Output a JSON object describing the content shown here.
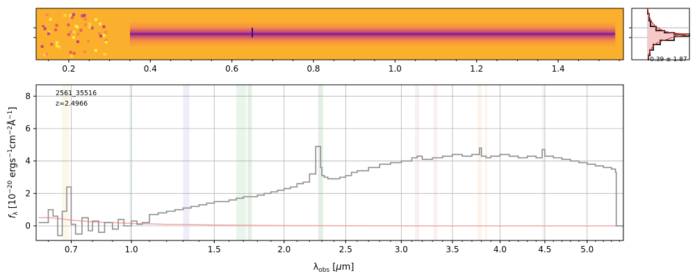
{
  "object_label": {
    "id": "2561_35516",
    "redshift": "z=2.4966"
  },
  "colors": {
    "spectrum": "#8c8c8c",
    "model": "#f4a3a3",
    "grid": "#b0b0b0",
    "hist_line": "#222222",
    "hist_fill": "#f7c8c8",
    "hist_model": "#d33b3b",
    "band_colors": [
      "#8fbf8f",
      "#9fc6e6",
      "#c4b8e8",
      "#a8d8b0",
      "#e6c6c6",
      "#f5d0b0",
      "#e0c0e0",
      "#f0e0b0"
    ]
  },
  "chart_data": [
    {
      "type": "heatmap",
      "name": "2D spectrum",
      "colormap": "plasma",
      "x_axis": {
        "range": [
          0.12,
          1.56
        ],
        "ticks": [
          "0.2",
          "0.4",
          "0.6",
          "0.8",
          "1.0",
          "1.2",
          "1.4"
        ]
      },
      "trace_center_fraction": 0.55,
      "profile": {
        "label": "-0.39 ± 1.87"
      }
    },
    {
      "type": "line",
      "name": "1D spectrum",
      "xlabel": "λ_obs [μm]",
      "ylabel": "f_λ [10^-20 ergs^-1cm^-2Å^-1]",
      "x_scale": "sqrt",
      "xlim": [
        0.55,
        5.45
      ],
      "ylim": [
        -0.9,
        8.7
      ],
      "xticks": [
        "0.7",
        "1.0",
        "1.5",
        "2.0",
        "2.5",
        "3.0",
        "3.5",
        "4.0",
        "4.5",
        "5.0"
      ],
      "xtick_values": [
        0.7,
        1.0,
        1.5,
        2.0,
        2.5,
        3.0,
        3.5,
        4.0,
        4.5,
        5.0
      ],
      "yticks": [
        "0",
        "2",
        "4",
        "6",
        "8"
      ],
      "ytick_values": [
        0,
        2,
        4,
        6,
        8
      ],
      "grid": true,
      "step_series": {
        "x": [
          0.56,
          0.6,
          0.62,
          0.64,
          0.66,
          0.68,
          0.7,
          0.72,
          0.75,
          0.78,
          0.8,
          0.83,
          0.86,
          0.9,
          0.93,
          0.96,
          1.0,
          1.03,
          1.06,
          1.1,
          1.15,
          1.2,
          1.25,
          1.3,
          1.35,
          1.4,
          1.45,
          1.5,
          1.55,
          1.6,
          1.65,
          1.7,
          1.75,
          1.8,
          1.85,
          1.9,
          1.95,
          2.0,
          2.05,
          2.1,
          2.15,
          2.2,
          2.25,
          2.29,
          2.3,
          2.32,
          2.35,
          2.4,
          2.45,
          2.5,
          2.55,
          2.6,
          2.7,
          2.8,
          2.9,
          3.0,
          3.1,
          3.15,
          3.2,
          3.3,
          3.4,
          3.5,
          3.6,
          3.7,
          3.78,
          3.8,
          3.85,
          3.9,
          4.0,
          4.1,
          4.2,
          4.3,
          4.4,
          4.47,
          4.5,
          4.6,
          4.7,
          4.8,
          4.9,
          5.0,
          5.1,
          5.2,
          5.3,
          5.35,
          5.36,
          5.45
        ],
        "y": [
          0.2,
          1.0,
          0.6,
          -0.6,
          0.9,
          2.4,
          0.1,
          -0.5,
          0.5,
          -0.3,
          0.3,
          -0.4,
          0.2,
          -0.2,
          0.4,
          0.0,
          0.3,
          0.1,
          0.2,
          0.7,
          0.8,
          0.9,
          1.0,
          1.1,
          1.2,
          1.3,
          1.4,
          1.5,
          1.5,
          1.6,
          1.7,
          1.8,
          1.8,
          1.9,
          2.0,
          2.1,
          2.2,
          2.3,
          2.4,
          2.6,
          2.7,
          3.2,
          4.9,
          3.6,
          3.1,
          3.0,
          2.9,
          2.9,
          3.0,
          3.1,
          3.3,
          3.4,
          3.6,
          3.8,
          3.9,
          4.0,
          4.2,
          4.3,
          4.1,
          4.2,
          4.3,
          4.4,
          4.3,
          4.4,
          4.8,
          4.3,
          4.2,
          4.3,
          4.4,
          4.3,
          4.2,
          4.3,
          4.2,
          4.7,
          4.3,
          4.2,
          4.1,
          4.0,
          3.9,
          3.8,
          3.7,
          3.6,
          3.5,
          3.3,
          0.0,
          0.0
        ]
      },
      "model_series": {
        "x": [
          0.56,
          0.6,
          0.65,
          0.7,
          0.8,
          0.9,
          1.0,
          1.2,
          1.5,
          2.0,
          3.0,
          4.0,
          5.0,
          5.45
        ],
        "y": [
          0.5,
          0.5,
          0.45,
          0.35,
          0.25,
          0.2,
          0.15,
          0.1,
          0.05,
          0.02,
          0.0,
          0.0,
          0.0,
          0.0
        ]
      },
      "bands": [
        {
          "x": [
            0.66,
            0.69
          ],
          "color_index": 7
        },
        {
          "x": [
            0.99,
            1.0
          ],
          "color_index": 1
        },
        {
          "x": [
            1.3,
            1.34
          ],
          "color_index": 2
        },
        {
          "x": [
            1.65,
            1.72
          ],
          "color_index": 3
        },
        {
          "x": [
            1.73,
            1.76
          ],
          "color_index": 0
        },
        {
          "x": [
            2.27,
            2.31
          ],
          "color_index": 0
        },
        {
          "x": [
            3.13,
            3.17
          ],
          "color_index": 4
        },
        {
          "x": [
            3.31,
            3.35
          ],
          "color_index": 4
        },
        {
          "x": [
            3.76,
            3.8
          ],
          "color_index": 5
        },
        {
          "x": [
            3.84,
            3.86
          ],
          "color_index": 5
        },
        {
          "x": [
            4.47,
            4.49
          ],
          "color_index": 6
        },
        {
          "x": [
            5.43,
            5.45
          ],
          "color_index": 4
        }
      ]
    }
  ]
}
